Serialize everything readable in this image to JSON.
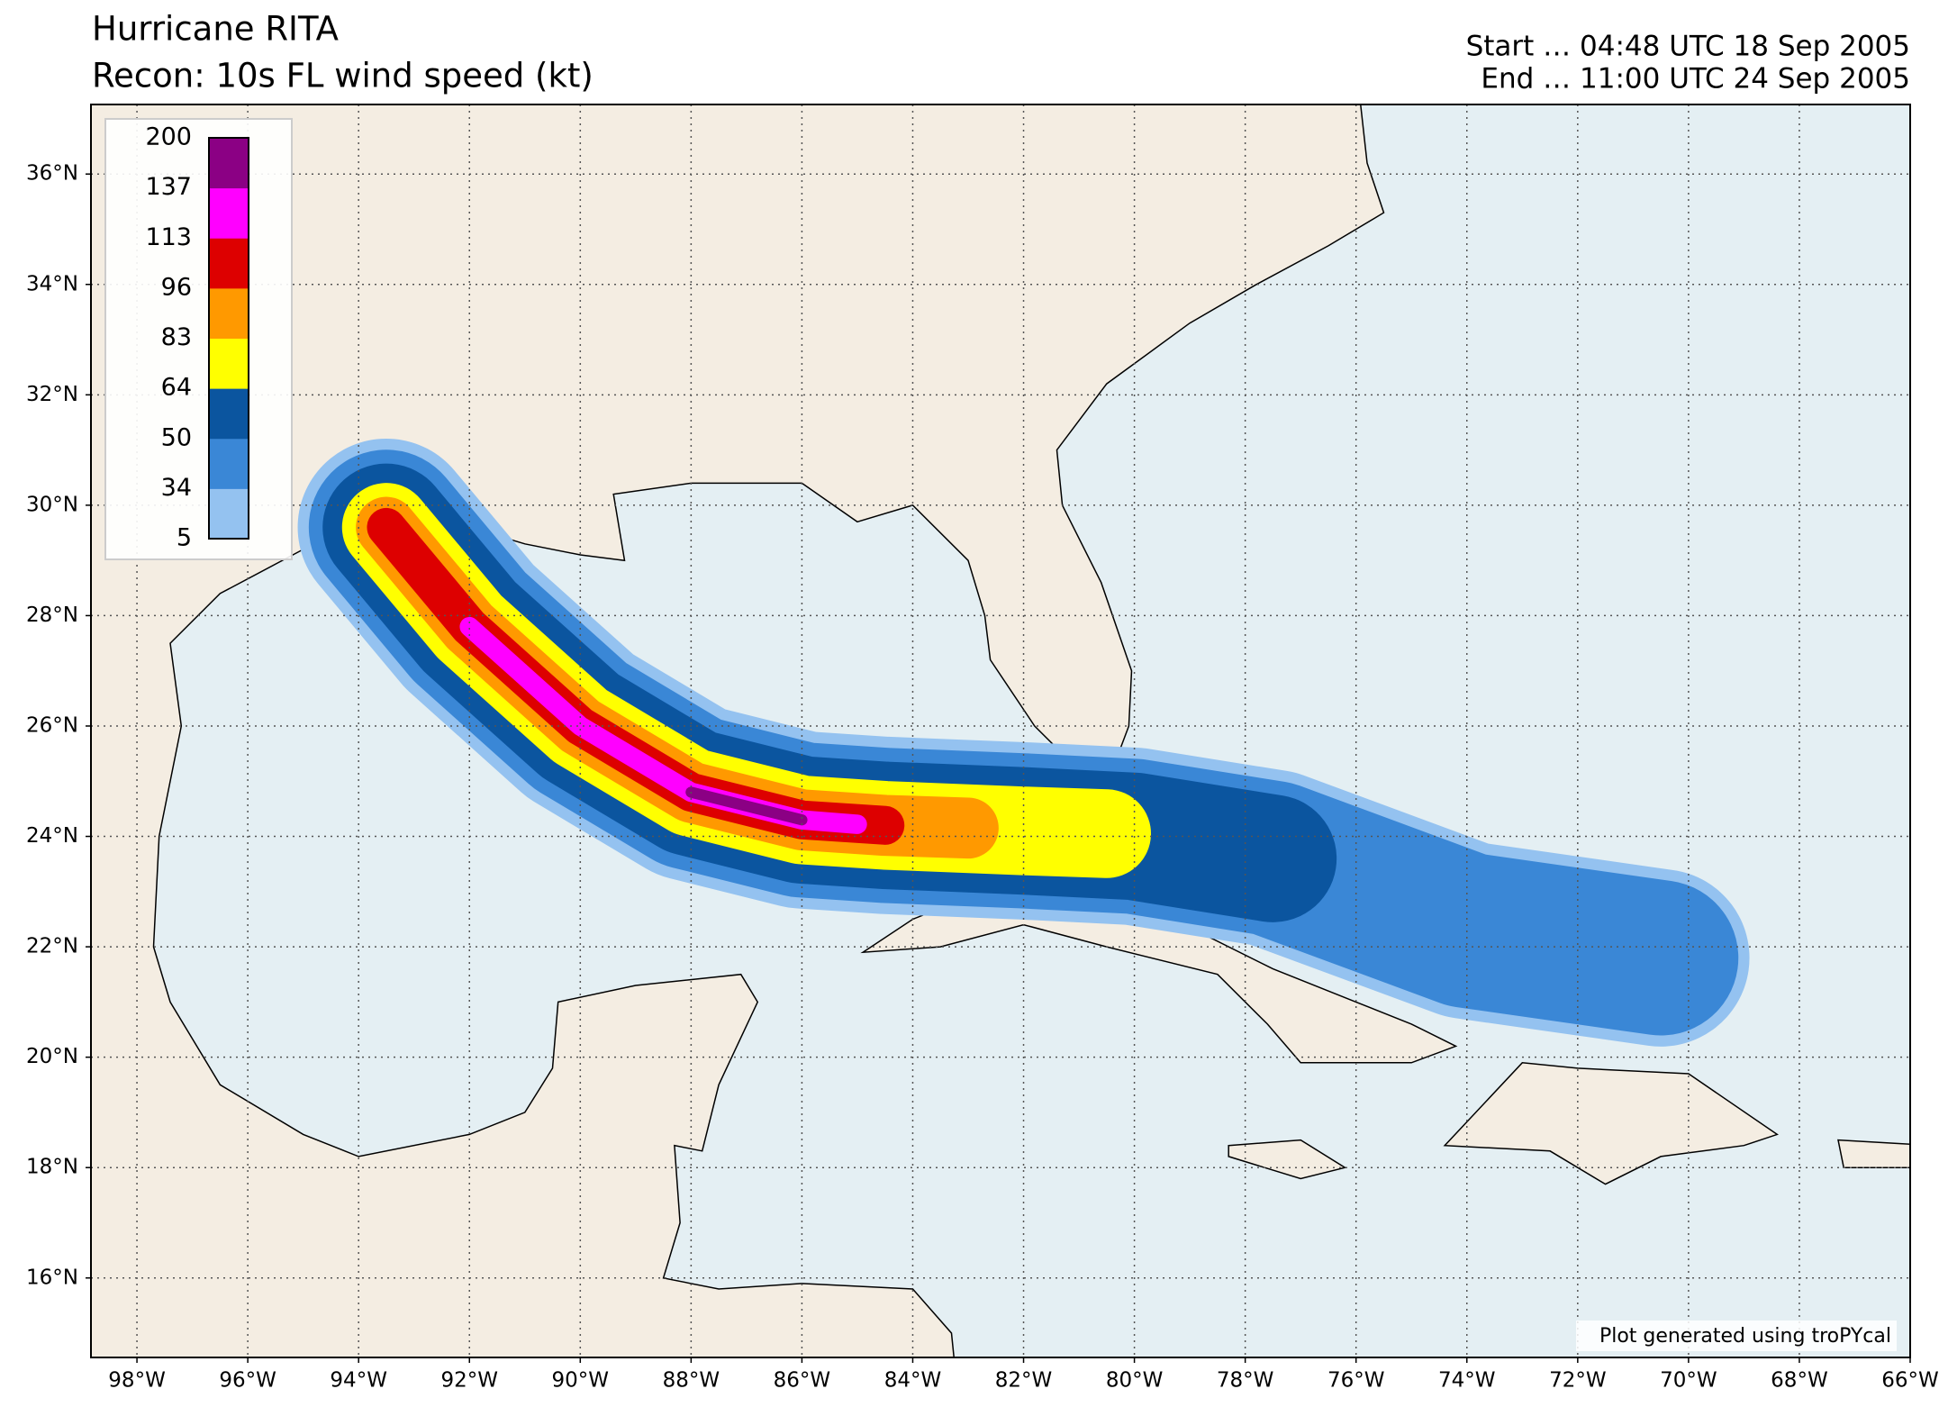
{
  "header": {
    "title": "Hurricane RITA",
    "subtitle": "Recon: 10s FL wind speed (kt)",
    "start": "Start … 04:48 UTC 18 Sep 2005",
    "end": "End … 11:00 UTC 24 Sep 2005"
  },
  "map": {
    "lonlim": [
      -98.83,
      -66
    ],
    "latlim": [
      14.56,
      37.26
    ],
    "lonticks": [
      {
        "value": -98,
        "label": "98°W"
      },
      {
        "value": -96,
        "label": "96°W"
      },
      {
        "value": -94,
        "label": "94°W"
      },
      {
        "value": -92,
        "label": "92°W"
      },
      {
        "value": -90,
        "label": "90°W"
      },
      {
        "value": -88,
        "label": "88°W"
      },
      {
        "value": -86,
        "label": "86°W"
      },
      {
        "value": -84,
        "label": "84°W"
      },
      {
        "value": -82,
        "label": "82°W"
      },
      {
        "value": -80,
        "label": "80°W"
      },
      {
        "value": -78,
        "label": "78°W"
      },
      {
        "value": -76,
        "label": "76°W"
      },
      {
        "value": -74,
        "label": "74°W"
      },
      {
        "value": -72,
        "label": "72°W"
      },
      {
        "value": -70,
        "label": "70°W"
      },
      {
        "value": -68,
        "label": "68°W"
      },
      {
        "value": -66,
        "label": "66°W"
      }
    ],
    "latticks": [
      {
        "value": 16,
        "label": "16°N"
      },
      {
        "value": 18,
        "label": "18°N"
      },
      {
        "value": 20,
        "label": "20°N"
      },
      {
        "value": 22,
        "label": "22°N"
      },
      {
        "value": 24,
        "label": "24°N"
      },
      {
        "value": 26,
        "label": "26°N"
      },
      {
        "value": 28,
        "label": "28°N"
      },
      {
        "value": 30,
        "label": "30°N"
      },
      {
        "value": 32,
        "label": "32°N"
      },
      {
        "value": 34,
        "label": "34°N"
      },
      {
        "value": 36,
        "label": "36°N"
      }
    ],
    "grid": true,
    "land_color": "#f4ede2",
    "ocean_color": "#e4eff3"
  },
  "colorbar": {
    "levels": [
      5,
      34,
      50,
      64,
      83,
      96,
      113,
      137,
      200
    ],
    "colors": [
      "#94c2f0",
      "#3a87d6",
      "#0b559f",
      "#ffff00",
      "#ff9900",
      "#dd0000",
      "#ff00ff",
      "#8b0084"
    ]
  },
  "credit": "Plot generated using troPYcal"
}
